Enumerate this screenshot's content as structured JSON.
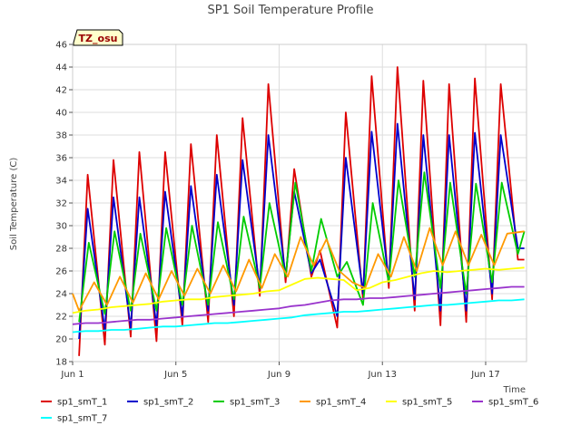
{
  "chart_data": {
    "type": "line",
    "title": "SP1 Soil Temperature Profile",
    "xlabel": "Time",
    "ylabel": "Soil Temperature (C)",
    "badge": "TZ_osu",
    "xlim": [
      "2018-06-01",
      "2018-06-18T14:00"
    ],
    "ylim": [
      18,
      46
    ],
    "yticks": [
      18,
      20,
      22,
      24,
      26,
      28,
      30,
      32,
      34,
      36,
      38,
      40,
      42,
      44,
      46
    ],
    "xticks": [
      {
        "label": "Jun 1",
        "date": "2018-06-01"
      },
      {
        "label": "Jun 5",
        "date": "2018-06-05"
      },
      {
        "label": "Jun 9",
        "date": "2018-06-09"
      },
      {
        "label": "Jun 13",
        "date": "2018-06-13"
      },
      {
        "label": "Jun 17",
        "date": "2018-06-17"
      }
    ],
    "grid": true,
    "legend_position": "bottom",
    "series": [
      {
        "name": "sp1_smT_1",
        "color": "#dd0000",
        "x": [
          "2018-06-01T06:00",
          "2018-06-01T14:00",
          "2018-06-02T06:00",
          "2018-06-02T14:00",
          "2018-06-03T06:00",
          "2018-06-03T14:00",
          "2018-06-04T06:00",
          "2018-06-04T14:00",
          "2018-06-05T06:00",
          "2018-06-05T14:00",
          "2018-06-06T06:00",
          "2018-06-06T14:00",
          "2018-06-07T06:00",
          "2018-06-07T14:00",
          "2018-06-08T06:00",
          "2018-06-08T14:00",
          "2018-06-09T06:00",
          "2018-06-09T14:00",
          "2018-06-10T06:00",
          "2018-06-10T14:00",
          "2018-06-11T06:00",
          "2018-06-11T14:00",
          "2018-06-12T06:00",
          "2018-06-12T14:00",
          "2018-06-13T06:00",
          "2018-06-13T14:00",
          "2018-06-14T06:00",
          "2018-06-14T14:00",
          "2018-06-15T06:00",
          "2018-06-15T14:00",
          "2018-06-16T06:00",
          "2018-06-16T14:00",
          "2018-06-17T06:00",
          "2018-06-17T14:00",
          "2018-06-18T06:00",
          "2018-06-18T12:00"
        ],
        "y": [
          18.5,
          34.5,
          19.5,
          35.8,
          20.2,
          36.5,
          19.8,
          36.5,
          21.2,
          37.2,
          21.5,
          38.0,
          22.0,
          39.5,
          23.8,
          42.5,
          25.0,
          35.0,
          25.5,
          27.8,
          21.0,
          40.0,
          23.5,
          43.2,
          24.5,
          44.0,
          22.5,
          42.8,
          21.2,
          42.5,
          21.5,
          43.0,
          23.5,
          42.5,
          27.0,
          27.0
        ]
      },
      {
        "name": "sp1_smT_2",
        "color": "#0000cc",
        "x": [
          "2018-06-01T06:00",
          "2018-06-01T14:00",
          "2018-06-02T06:00",
          "2018-06-02T14:00",
          "2018-06-03T06:00",
          "2018-06-03T14:00",
          "2018-06-04T06:00",
          "2018-06-04T14:00",
          "2018-06-05T06:00",
          "2018-06-05T14:00",
          "2018-06-06T06:00",
          "2018-06-06T14:00",
          "2018-06-07T06:00",
          "2018-06-07T14:00",
          "2018-06-08T06:00",
          "2018-06-08T14:00",
          "2018-06-09T06:00",
          "2018-06-09T14:00",
          "2018-06-10T06:00",
          "2018-06-10T14:00",
          "2018-06-11T06:00",
          "2018-06-11T14:00",
          "2018-06-12T06:00",
          "2018-06-12T14:00",
          "2018-06-13T06:00",
          "2018-06-13T14:00",
          "2018-06-14T06:00",
          "2018-06-14T14:00",
          "2018-06-15T06:00",
          "2018-06-15T14:00",
          "2018-06-16T06:00",
          "2018-06-16T14:00",
          "2018-06-17T06:00",
          "2018-06-17T14:00",
          "2018-06-18T06:00",
          "2018-06-18T12:00"
        ],
        "y": [
          20.0,
          31.5,
          20.8,
          32.5,
          21.0,
          32.5,
          21.2,
          33.0,
          22.0,
          33.5,
          22.5,
          34.5,
          23.0,
          35.8,
          24.5,
          38.0,
          25.5,
          33.0,
          25.8,
          27.0,
          22.0,
          36.0,
          24.0,
          38.3,
          25.0,
          39.0,
          23.5,
          38.0,
          22.5,
          38.0,
          22.5,
          38.2,
          24.0,
          38.0,
          28.0,
          28.0
        ]
      },
      {
        "name": "sp1_smT_3",
        "color": "#00cc00",
        "x": [
          "2018-06-01T06:00",
          "2018-06-01T15:00",
          "2018-06-02T06:00",
          "2018-06-02T15:00",
          "2018-06-03T06:00",
          "2018-06-03T15:00",
          "2018-06-04T06:00",
          "2018-06-04T15:00",
          "2018-06-05T06:00",
          "2018-06-05T15:00",
          "2018-06-06T06:00",
          "2018-06-06T15:00",
          "2018-06-07T06:00",
          "2018-06-07T15:00",
          "2018-06-08T06:00",
          "2018-06-08T15:00",
          "2018-06-09T06:00",
          "2018-06-09T15:00",
          "2018-06-10T06:00",
          "2018-06-10T15:00",
          "2018-06-11T06:00",
          "2018-06-11T15:00",
          "2018-06-12T06:00",
          "2018-06-12T15:00",
          "2018-06-13T06:00",
          "2018-06-13T15:00",
          "2018-06-14T06:00",
          "2018-06-14T15:00",
          "2018-06-15T06:00",
          "2018-06-15T15:00",
          "2018-06-16T06:00",
          "2018-06-16T15:00",
          "2018-06-17T06:00",
          "2018-06-17T15:00",
          "2018-06-18T06:00",
          "2018-06-18T12:00"
        ],
        "y": [
          21.5,
          28.5,
          22.2,
          29.5,
          22.5,
          29.3,
          22.5,
          29.8,
          23.0,
          30.0,
          23.0,
          30.3,
          23.5,
          30.8,
          24.5,
          32.0,
          25.5,
          33.8,
          26.0,
          30.6,
          25.5,
          26.8,
          23.0,
          32.0,
          25.0,
          34.0,
          25.5,
          34.7,
          24.5,
          33.8,
          24.0,
          33.7,
          25.0,
          33.8,
          27.5,
          29.5
        ]
      },
      {
        "name": "sp1_smT_4",
        "color": "#ff9900",
        "x": [
          "2018-06-01T00:00",
          "2018-06-01T06:00",
          "2018-06-01T20:00",
          "2018-06-02T08:00",
          "2018-06-02T20:00",
          "2018-06-03T08:00",
          "2018-06-03T20:00",
          "2018-06-04T08:00",
          "2018-06-04T20:00",
          "2018-06-05T08:00",
          "2018-06-05T20:00",
          "2018-06-06T08:00",
          "2018-06-06T20:00",
          "2018-06-07T08:00",
          "2018-06-07T20:00",
          "2018-06-08T08:00",
          "2018-06-08T20:00",
          "2018-06-09T08:00",
          "2018-06-09T20:00",
          "2018-06-10T08:00",
          "2018-06-10T20:00",
          "2018-06-11T08:00",
          "2018-06-11T20:00",
          "2018-06-12T08:00",
          "2018-06-12T20:00",
          "2018-06-13T08:00",
          "2018-06-13T20:00",
          "2018-06-14T08:00",
          "2018-06-14T20:00",
          "2018-06-15T08:00",
          "2018-06-15T20:00",
          "2018-06-16T08:00",
          "2018-06-16T20:00",
          "2018-06-17T08:00",
          "2018-06-17T20:00",
          "2018-06-18T12:00"
        ],
        "y": [
          24.0,
          22.5,
          25.0,
          23.0,
          25.5,
          23.2,
          25.8,
          23.5,
          26.0,
          23.8,
          26.2,
          24.0,
          26.5,
          24.2,
          27.0,
          24.5,
          27.5,
          25.5,
          29.0,
          26.5,
          28.8,
          26.0,
          25.0,
          24.5,
          27.5,
          25.5,
          29.0,
          26.0,
          29.8,
          26.5,
          29.5,
          26.5,
          29.2,
          26.5,
          29.3,
          29.5
        ]
      },
      {
        "name": "sp1_smT_5",
        "color": "#ffff00",
        "x": [
          "2018-06-01T00:00",
          "2018-06-01T12:00",
          "2018-06-02T00:00",
          "2018-06-02T12:00",
          "2018-06-03T00:00",
          "2018-06-03T12:00",
          "2018-06-04T00:00",
          "2018-06-04T12:00",
          "2018-06-05T00:00",
          "2018-06-05T12:00",
          "2018-06-06T00:00",
          "2018-06-06T12:00",
          "2018-06-07T00:00",
          "2018-06-07T12:00",
          "2018-06-08T00:00",
          "2018-06-08T12:00",
          "2018-06-09T00:00",
          "2018-06-09T12:00",
          "2018-06-10T00:00",
          "2018-06-10T12:00",
          "2018-06-11T00:00",
          "2018-06-11T12:00",
          "2018-06-12T00:00",
          "2018-06-12T12:00",
          "2018-06-13T00:00",
          "2018-06-13T12:00",
          "2018-06-14T00:00",
          "2018-06-14T12:00",
          "2018-06-15T00:00",
          "2018-06-15T12:00",
          "2018-06-16T00:00",
          "2018-06-16T12:00",
          "2018-06-17T00:00",
          "2018-06-17T12:00",
          "2018-06-18T00:00",
          "2018-06-18T12:00"
        ],
        "y": [
          22.3,
          22.5,
          22.6,
          22.8,
          22.9,
          23.0,
          23.1,
          23.3,
          23.4,
          23.5,
          23.5,
          23.7,
          23.8,
          23.9,
          24.0,
          24.2,
          24.3,
          24.8,
          25.3,
          25.4,
          25.3,
          25.2,
          24.3,
          24.5,
          25.0,
          25.2,
          25.5,
          25.8,
          26.0,
          25.9,
          26.0,
          26.1,
          26.2,
          26.1,
          26.2,
          26.3
        ]
      },
      {
        "name": "sp1_smT_6",
        "color": "#9933cc",
        "x": [
          "2018-06-01T00:00",
          "2018-06-01T12:00",
          "2018-06-02T00:00",
          "2018-06-02T12:00",
          "2018-06-03T00:00",
          "2018-06-03T12:00",
          "2018-06-04T00:00",
          "2018-06-04T12:00",
          "2018-06-05T00:00",
          "2018-06-05T12:00",
          "2018-06-06T00:00",
          "2018-06-06T12:00",
          "2018-06-07T00:00",
          "2018-06-07T12:00",
          "2018-06-08T00:00",
          "2018-06-08T12:00",
          "2018-06-09T00:00",
          "2018-06-09T12:00",
          "2018-06-10T00:00",
          "2018-06-10T12:00",
          "2018-06-11T00:00",
          "2018-06-11T12:00",
          "2018-06-12T00:00",
          "2018-06-12T12:00",
          "2018-06-13T00:00",
          "2018-06-13T12:00",
          "2018-06-14T00:00",
          "2018-06-14T12:00",
          "2018-06-15T00:00",
          "2018-06-15T12:00",
          "2018-06-16T00:00",
          "2018-06-16T12:00",
          "2018-06-17T00:00",
          "2018-06-17T12:00",
          "2018-06-18T00:00",
          "2018-06-18T12:00"
        ],
        "y": [
          21.3,
          21.4,
          21.4,
          21.5,
          21.6,
          21.7,
          21.7,
          21.8,
          21.9,
          22.0,
          22.1,
          22.2,
          22.3,
          22.4,
          22.5,
          22.6,
          22.7,
          22.9,
          23.0,
          23.2,
          23.4,
          23.5,
          23.5,
          23.6,
          23.6,
          23.7,
          23.8,
          23.9,
          24.0,
          24.1,
          24.2,
          24.3,
          24.4,
          24.5,
          24.6,
          24.6
        ]
      },
      {
        "name": "sp1_smT_7",
        "color": "#00ffff",
        "x": [
          "2018-06-01T00:00",
          "2018-06-01T12:00",
          "2018-06-02T00:00",
          "2018-06-02T12:00",
          "2018-06-03T00:00",
          "2018-06-03T12:00",
          "2018-06-04T00:00",
          "2018-06-04T12:00",
          "2018-06-05T00:00",
          "2018-06-05T12:00",
          "2018-06-06T00:00",
          "2018-06-06T12:00",
          "2018-06-07T00:00",
          "2018-06-07T12:00",
          "2018-06-08T00:00",
          "2018-06-08T12:00",
          "2018-06-09T00:00",
          "2018-06-09T12:00",
          "2018-06-10T00:00",
          "2018-06-10T12:00",
          "2018-06-11T00:00",
          "2018-06-11T12:00",
          "2018-06-12T00:00",
          "2018-06-12T12:00",
          "2018-06-13T00:00",
          "2018-06-13T12:00",
          "2018-06-14T00:00",
          "2018-06-14T12:00",
          "2018-06-15T00:00",
          "2018-06-15T12:00",
          "2018-06-16T00:00",
          "2018-06-16T12:00",
          "2018-06-17T00:00",
          "2018-06-17T12:00",
          "2018-06-18T00:00",
          "2018-06-18T12:00"
        ],
        "y": [
          20.6,
          20.7,
          20.7,
          20.8,
          20.8,
          20.9,
          21.0,
          21.1,
          21.1,
          21.2,
          21.3,
          21.4,
          21.4,
          21.5,
          21.6,
          21.7,
          21.8,
          21.9,
          22.1,
          22.2,
          22.3,
          22.4,
          22.4,
          22.5,
          22.6,
          22.7,
          22.8,
          22.9,
          23.0,
          23.0,
          23.1,
          23.2,
          23.3,
          23.4,
          23.4,
          23.5
        ]
      }
    ]
  }
}
